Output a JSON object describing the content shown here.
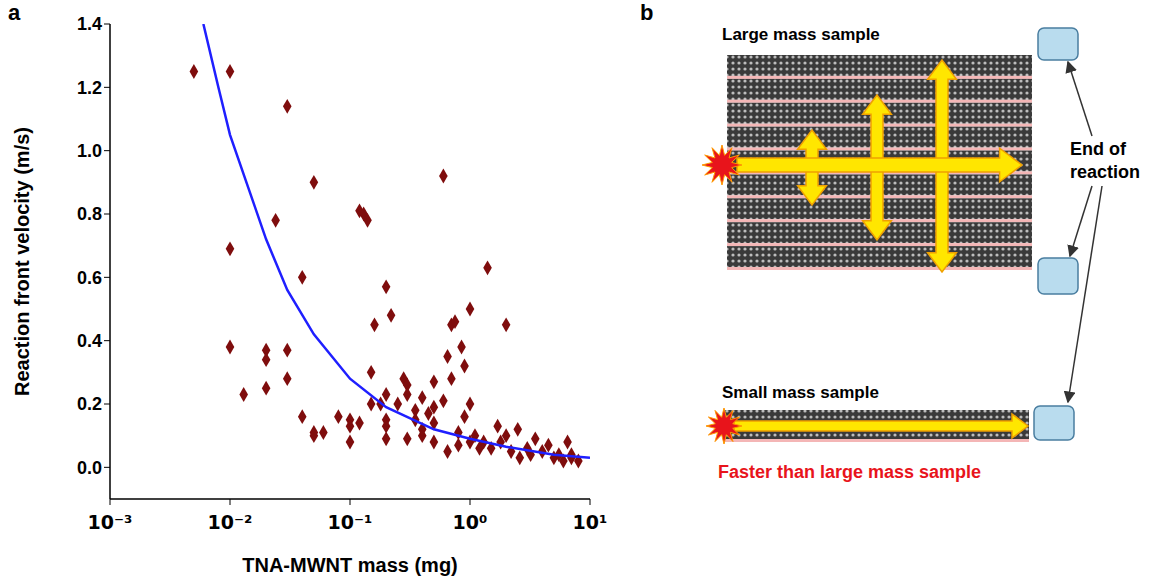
{
  "chart_data": {
    "type": "scatter",
    "label": "a",
    "x_label": "TNA-MWNT mass (mg)",
    "y_label": "Reaction front velocity (m/s)",
    "log": "x",
    "grid": false,
    "xlim": [
      0.001,
      10
    ],
    "xticks": [
      {
        "value": 0.001,
        "label": "10⁻³"
      },
      {
        "value": 0.01,
        "label": "10⁻²"
      },
      {
        "value": 0.1,
        "label": "10⁻¹"
      },
      {
        "value": 1,
        "label": "10⁰"
      },
      {
        "value": 10,
        "label": "10¹"
      }
    ],
    "ylim": [
      -0.1,
      1.4
    ],
    "yticks": [
      {
        "value": 0,
        "label": "0.0"
      },
      0.2,
      0.4,
      0.6,
      0.8,
      {
        "value": 1,
        "label": "1.0"
      },
      1.2,
      1.4
    ],
    "series": [
      {
        "type": "scatter",
        "color": "#7f0d0d",
        "marker": "diamond",
        "x": [
          0.005,
          0.01,
          0.01,
          0.01,
          0.013,
          0.02,
          0.02,
          0.02,
          0.024,
          0.03,
          0.03,
          0.03,
          0.04,
          0.04,
          0.05,
          0.05,
          0.05,
          0.06,
          0.08,
          0.1,
          0.1,
          0.1,
          0.12,
          0.13,
          0.14,
          0.12,
          0.15,
          0.15,
          0.16,
          0.18,
          0.2,
          0.2,
          0.2,
          0.2,
          0.2,
          0.22,
          0.25,
          0.28,
          0.3,
          0.3,
          0.3,
          0.35,
          0.35,
          0.4,
          0.4,
          0.4,
          0.45,
          0.5,
          0.5,
          0.5,
          0.5,
          0.6,
          0.6,
          0.65,
          0.65,
          0.7,
          0.75,
          0.7,
          0.8,
          0.8,
          0.85,
          0.9,
          0.9,
          1.0,
          1.0,
          1.0,
          1.1,
          1.2,
          1.4,
          1.3,
          1.5,
          1.7,
          1.8,
          2.0,
          2.0,
          2.2,
          2.5,
          2.6,
          3.0,
          3.2,
          3.5,
          4.0,
          4.5,
          5.0,
          5.5,
          6.0,
          6.5,
          7.0,
          7.0,
          8.0
        ],
        "values": [
          1.25,
          1.25,
          0.69,
          0.38,
          0.23,
          0.37,
          0.34,
          0.25,
          0.78,
          1.14,
          0.37,
          0.28,
          0.6,
          0.16,
          0.9,
          0.11,
          0.1,
          0.11,
          0.16,
          0.15,
          0.13,
          0.08,
          0.81,
          0.8,
          0.78,
          0.14,
          0.3,
          0.2,
          0.45,
          0.2,
          0.57,
          0.23,
          0.15,
          0.13,
          0.09,
          0.48,
          0.2,
          0.28,
          0.26,
          0.23,
          0.09,
          0.18,
          0.15,
          0.1,
          0.12,
          0.22,
          0.17,
          0.27,
          0.19,
          0.14,
          0.08,
          0.92,
          0.21,
          0.05,
          0.35,
          0.45,
          0.46,
          0.28,
          0.11,
          0.07,
          0.38,
          0.32,
          0.16,
          0.5,
          0.2,
          0.08,
          0.1,
          0.06,
          0.63,
          0.08,
          0.06,
          0.13,
          0.08,
          0.45,
          0.1,
          0.05,
          0.12,
          0.03,
          0.06,
          0.04,
          0.09,
          0.05,
          0.07,
          0.03,
          0.04,
          0.02,
          0.08,
          0.04,
          0.03,
          0.02
        ]
      },
      {
        "type": "line",
        "color": "#1f1fff",
        "marker": "none",
        "x": [
          0.006,
          0.008,
          0.01,
          0.02,
          0.03,
          0.05,
          0.1,
          0.2,
          0.5,
          1,
          2,
          5,
          10
        ],
        "values": [
          1.4,
          1.2,
          1.05,
          0.72,
          0.56,
          0.42,
          0.28,
          0.19,
          0.12,
          0.09,
          0.065,
          0.04,
          0.03
        ]
      }
    ]
  },
  "diagram": {
    "label": "b",
    "texts": {
      "large": "Large mass sample",
      "end": "End of reaction",
      "small": "Small mass sample",
      "faster": "Faster than large mass sample"
    }
  }
}
